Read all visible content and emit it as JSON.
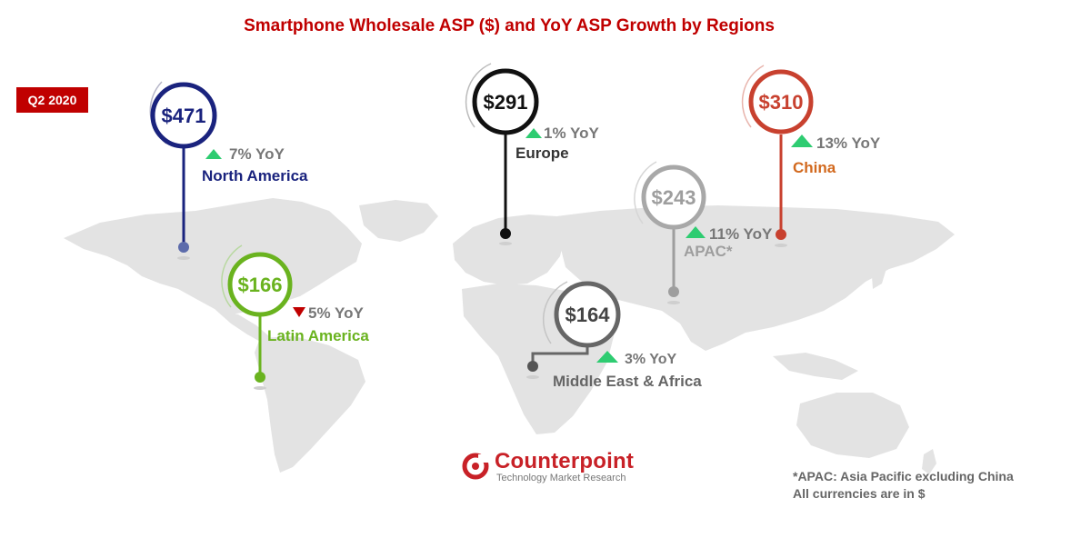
{
  "chart_data": {
    "type": "map-markers",
    "title": "Smartphone Wholesale ASP ($) and YoY ASP Growth by Regions",
    "period": "Q2 2020",
    "regions": [
      {
        "name": "North America",
        "asp": 471,
        "asp_label": "$471",
        "yoy": 7,
        "yoy_label": "7% YoY",
        "direction": "up",
        "color": "#1a237e"
      },
      {
        "name": "Latin America",
        "asp": 166,
        "asp_label": "$166",
        "yoy": -5,
        "yoy_label": "5% YoY",
        "direction": "down",
        "color": "#6ab31f"
      },
      {
        "name": "Europe",
        "asp": 291,
        "asp_label": "$291",
        "yoy": 1,
        "yoy_label": "1% YoY",
        "direction": "up",
        "color": "#111111"
      },
      {
        "name": "Middle East & Africa",
        "asp": 164,
        "asp_label": "$164",
        "yoy": 3,
        "yoy_label": "3% YoY",
        "direction": "up",
        "color": "#666666"
      },
      {
        "name": "APAC*",
        "asp": 243,
        "asp_label": "$243",
        "yoy": 11,
        "yoy_label": "11% YoY",
        "direction": "up",
        "color": "#9e9e9e"
      },
      {
        "name": "China",
        "asp": 310,
        "asp_label": "$310",
        "yoy": 13,
        "yoy_label": "13% YoY",
        "direction": "up",
        "color": "#c8412f"
      }
    ]
  },
  "logo": {
    "name": "Counterpoint",
    "tagline": "Technology Market Research"
  },
  "footnotes": [
    "*APAC: Asia Pacific excluding China",
    "All currencies are in $"
  ],
  "colors": {
    "title": "#c00000",
    "up_arrow": "#2ecc71",
    "down_arrow": "#c00000",
    "map": "#e3e3e3"
  }
}
